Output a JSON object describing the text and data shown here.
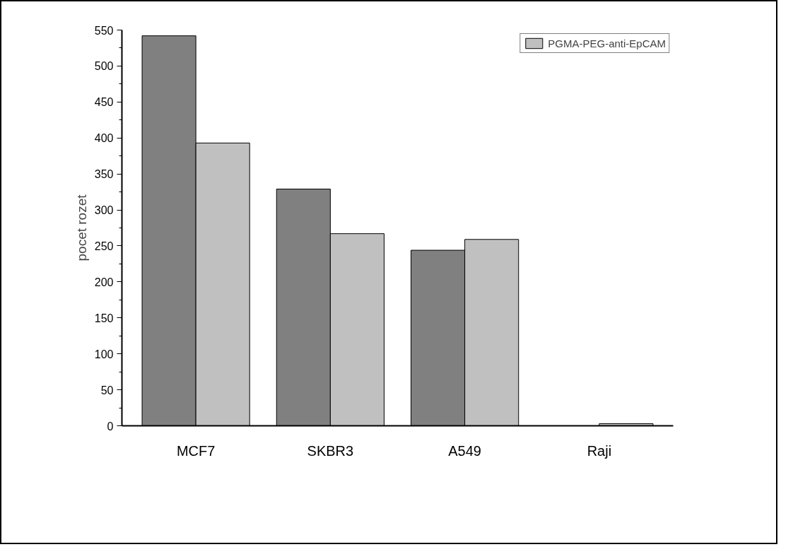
{
  "chart_data": {
    "type": "bar",
    "ylabel": "pocet rozet",
    "categories": [
      "MCF7",
      "SKBR3",
      "A549",
      "Raji"
    ],
    "series": [
      {
        "color": "#808080",
        "values": [
          542,
          329,
          244,
          null
        ]
      },
      {
        "name": "PGMA-PEG-anti-EpCAM",
        "color": "#c0c0c0",
        "values": [
          393,
          267,
          259,
          3
        ]
      }
    ],
    "ylim": [
      0,
      550
    ],
    "yticks": [
      0,
      50,
      100,
      150,
      200,
      250,
      300,
      350,
      400,
      450,
      500,
      550
    ],
    "grid": false,
    "legend": "top right"
  }
}
